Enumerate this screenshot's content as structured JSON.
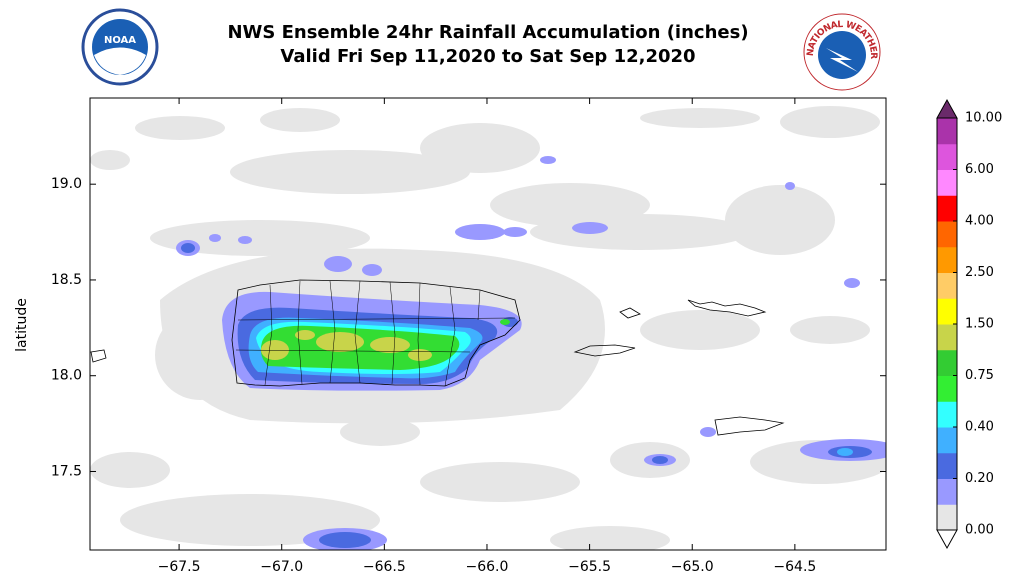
{
  "chart_data": {
    "type": "map",
    "title": "NWS Ensemble 24hr Rainfall Accumulation (inches)",
    "subtitle": "Valid Fri Sep 11,2020 to Sat Sep 12,2020",
    "ylabel": "latitude",
    "xlim": [
      -67.934,
      -64.056
    ],
    "ylim": [
      17.09,
      19.45
    ],
    "xticks": [
      {
        "value": -67.5,
        "label": "−67.5"
      },
      {
        "value": -67.0,
        "label": "−67.0"
      },
      {
        "value": -66.5,
        "label": "−66.5"
      },
      {
        "value": -66.0,
        "label": "−66.0"
      },
      {
        "value": -65.5,
        "label": "−65.5"
      },
      {
        "value": -65.0,
        "label": "−65.0"
      },
      {
        "value": -64.5,
        "label": "−64.5"
      }
    ],
    "yticks": [
      {
        "value": 17.5,
        "label": "17.5"
      },
      {
        "value": 18.0,
        "label": "18.0"
      },
      {
        "value": 18.5,
        "label": "18.5"
      },
      {
        "value": 19.0,
        "label": "19.0"
      }
    ],
    "colorbar": {
      "ticks": [
        {
          "value": 0,
          "label": "0.00"
        },
        {
          "value": 0.2,
          "label": "0.20"
        },
        {
          "value": 0.4,
          "label": "0.40"
        },
        {
          "value": 0.75,
          "label": "0.75"
        },
        {
          "value": 1.5,
          "label": "1.50"
        },
        {
          "value": 2.5,
          "label": "2.50"
        },
        {
          "value": 4,
          "label": "4.00"
        },
        {
          "value": 6,
          "label": "6.00"
        },
        {
          "value": 10,
          "label": "10.00"
        }
      ],
      "colors": [
        "#e6e6e6",
        "#9999ff",
        "#4a6ae0",
        "#40b0ff",
        "#33ffff",
        "#33ee33",
        "#33cc33",
        "#c8d44a",
        "#ffff00",
        "#ffcc66",
        "#ff9900",
        "#ff6600",
        "#ff0000",
        "#ff88ff",
        "#dd55dd",
        "#aa33aa"
      ],
      "under_color": "#ffffff",
      "over_color": "#6a2a6a"
    },
    "logos": {
      "noaa": "NOAA",
      "nws": "NATIONAL WEATHER SERVICE"
    }
  }
}
